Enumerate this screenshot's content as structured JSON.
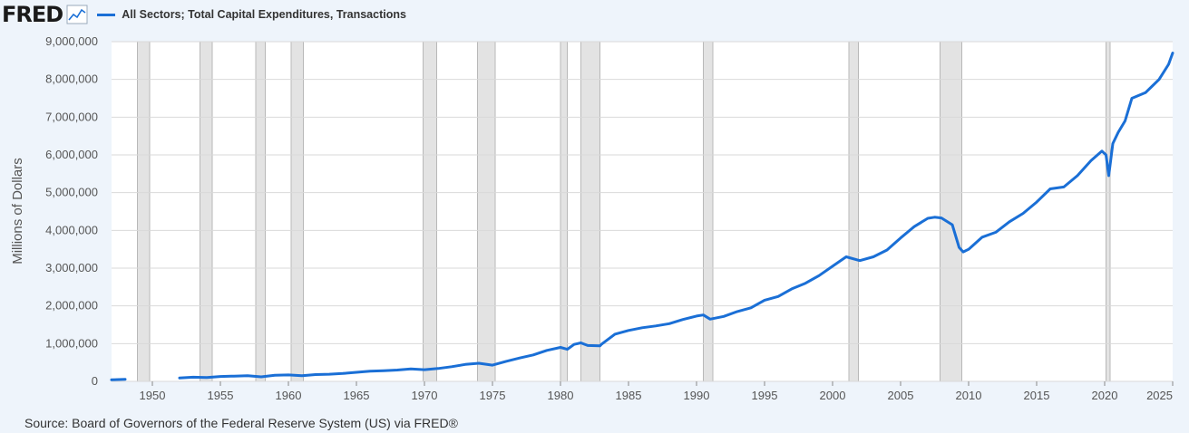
{
  "header": {
    "logo_text": "FRED",
    "logo_icon": "line-chart-icon",
    "legend_label": "All Sectors; Total Capital Expenditures, Transactions"
  },
  "source_text": "Source: Board of Governors of the Federal Reserve System (US) via FRED®",
  "colors": {
    "series": "#1a6fd6",
    "background": "#eef4fb",
    "plot_background": "#ffffff",
    "recession": "#e3e3e3",
    "grid": "#d9d9d9"
  },
  "chart_data": {
    "type": "line",
    "title": "All Sectors; Total Capital Expenditures, Transactions",
    "xlabel": "",
    "ylabel": "Millions of Dollars",
    "xlim": [
      1947,
      2025
    ],
    "ylim": [
      0,
      9000000
    ],
    "x_ticks": [
      1950,
      1955,
      1960,
      1965,
      1970,
      1975,
      1980,
      1985,
      1990,
      1995,
      2000,
      2005,
      2010,
      2015,
      2020,
      2025
    ],
    "y_ticks": [
      0,
      1000000,
      2000000,
      3000000,
      4000000,
      5000000,
      6000000,
      7000000,
      8000000,
      9000000
    ],
    "y_tick_labels": [
      "0",
      "1,000,000",
      "2,000,000",
      "3,000,000",
      "4,000,000",
      "5,000,000",
      "6,000,000",
      "7,000,000",
      "8,000,000",
      "9,000,000"
    ],
    "grid": true,
    "legend_position": "top-left",
    "recessions": [
      [
        1948.9,
        1949.8
      ],
      [
        1953.5,
        1954.4
      ],
      [
        1957.6,
        1958.3
      ],
      [
        1960.2,
        1961.1
      ],
      [
        1969.9,
        1970.9
      ],
      [
        1973.9,
        1975.2
      ],
      [
        1980.0,
        1980.5
      ],
      [
        1981.5,
        1982.9
      ],
      [
        1990.5,
        1991.2
      ],
      [
        2001.2,
        2001.9
      ],
      [
        2007.9,
        2009.5
      ],
      [
        2020.1,
        2020.4
      ]
    ],
    "series": [
      {
        "name": "All Sectors; Total Capital Expenditures, Transactions",
        "segments": [
          {
            "x": [
              1947.0,
              1948.0
            ],
            "y": [
              40000,
              55000
            ]
          },
          {
            "x": [
              1952.0,
              1953.0,
              1954.0,
              1955.0,
              1956.0,
              1957.0,
              1958.0,
              1959.0,
              1960.0,
              1961.0,
              1962.0,
              1963.0,
              1964.0,
              1965.0,
              1966.0,
              1967.0,
              1968.0,
              1969.0,
              1970.0,
              1971.0,
              1972.0,
              1973.0,
              1974.0,
              1975.0,
              1976.0,
              1977.0,
              1978.0,
              1979.0,
              1980.0,
              1980.5,
              1981.0,
              1981.5,
              1982.0,
              1982.9,
              1983.0,
              1984.0,
              1985.0,
              1986.0,
              1987.0,
              1988.0,
              1989.0,
              1990.0,
              1990.5,
              1991.0,
              1992.0,
              1993.0,
              1994.0,
              1995.0,
              1996.0,
              1997.0,
              1998.0,
              1999.0,
              2000.0,
              2001.0,
              2002.0,
              2003.0,
              2004.0,
              2005.0,
              2006.0,
              2007.0,
              2007.5,
              2008.0,
              2008.8,
              2009.3,
              2009.6,
              2010.0,
              2011.0,
              2012.0,
              2013.0,
              2014.0,
              2015.0,
              2016.0,
              2017.0,
              2018.0,
              2019.0,
              2019.8,
              2020.1,
              2020.3,
              2020.6,
              2021.0,
              2021.5,
              2022.0,
              2023.0,
              2024.0,
              2024.7,
              2025.0
            ],
            "y": [
              90000,
              110000,
              100000,
              130000,
              140000,
              150000,
              120000,
              160000,
              170000,
              150000,
              180000,
              190000,
              210000,
              240000,
              270000,
              280000,
              300000,
              330000,
              310000,
              340000,
              390000,
              450000,
              480000,
              430000,
              530000,
              620000,
              700000,
              820000,
              900000,
              850000,
              980000,
              1020000,
              950000,
              940000,
              980000,
              1250000,
              1350000,
              1420000,
              1470000,
              1530000,
              1640000,
              1730000,
              1760000,
              1650000,
              1720000,
              1850000,
              1950000,
              2150000,
              2250000,
              2450000,
              2600000,
              2800000,
              3050000,
              3300000,
              3200000,
              3300000,
              3480000,
              3800000,
              4100000,
              4320000,
              4350000,
              4330000,
              4150000,
              3550000,
              3430000,
              3500000,
              3820000,
              3950000,
              4230000,
              4450000,
              4750000,
              5100000,
              5150000,
              5450000,
              5850000,
              6100000,
              6000000,
              5450000,
              6300000,
              6600000,
              6900000,
              7500000,
              7650000,
              8000000,
              8400000,
              8700000
            ]
          }
        ]
      }
    ]
  }
}
